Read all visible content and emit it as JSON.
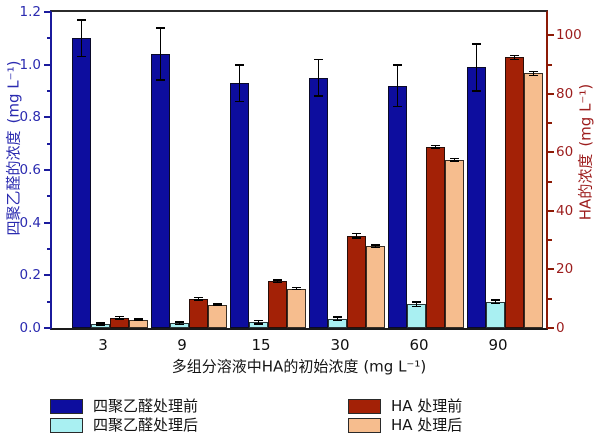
{
  "chart_data": {
    "type": "bar",
    "categories": [
      "3",
      "9",
      "15",
      "30",
      "60",
      "90"
    ],
    "series": [
      {
        "name": "四聚乙醛处理前",
        "axis": "left",
        "color": "#0d0d9e",
        "values": [
          1.1,
          1.04,
          0.93,
          0.95,
          0.92,
          0.99
        ],
        "errors": [
          0.07,
          0.1,
          0.07,
          0.07,
          0.08,
          0.09
        ]
      },
      {
        "name": "四聚乙醛处理后",
        "axis": "left",
        "color": "#a9f0f2",
        "values": [
          0.015,
          0.018,
          0.022,
          0.035,
          0.09,
          0.1
        ],
        "errors": [
          0.005,
          0.005,
          0.008,
          0.008,
          0.01,
          0.008
        ]
      },
      {
        "name": "HA 处理前",
        "axis": "right",
        "color": "#a32106",
        "values": [
          3.5,
          10,
          16,
          31.5,
          62,
          92.5
        ],
        "errors": [
          0.5,
          0.5,
          0.5,
          0.8,
          0.5,
          0.8
        ]
      },
      {
        "name": "HA 处理后",
        "axis": "right",
        "color": "#f6bd8e",
        "values": [
          2.8,
          8,
          13.5,
          28,
          57.5,
          87
        ],
        "errors": [
          0.3,
          0.3,
          0.5,
          0.5,
          0.5,
          0.8
        ]
      }
    ],
    "x_axis": {
      "title": "多组分溶液中HA的初始浓度",
      "unit": "(mg L⁻¹)",
      "tick_labels": [
        "3",
        "9",
        "15",
        "30",
        "60",
        "90"
      ]
    },
    "left_axis": {
      "title": "四聚乙醛的浓度",
      "unit": "(mg L⁻¹)",
      "ticks": [
        0,
        0.2,
        0.4,
        0.6,
        0.8,
        1.0,
        1.2
      ],
      "minor_step": 0.1,
      "ylim": [
        0,
        1.2
      ],
      "decimals": 1,
      "color": "#2b2bb0",
      "line_color": "#1b1b9d"
    },
    "right_axis": {
      "title": "HA的浓度",
      "unit": "(mg L⁻¹)",
      "ticks": [
        0,
        20,
        40,
        60,
        80,
        100
      ],
      "minor_step": 10,
      "ylim": [
        0,
        108
      ],
      "decimals": 0,
      "color": "#9c1c1c",
      "line_color": "#8c1a06"
    },
    "legend": {
      "position": "bottom",
      "items": [
        {
          "label": "四聚乙醛处理前",
          "color": "#0d0d9e"
        },
        {
          "label": "四聚乙醛处理后",
          "color": "#a9f0f2"
        },
        {
          "label": "HA 处理前",
          "color": "#a32106"
        },
        {
          "label": "HA 处理后",
          "color": "#f6bd8e"
        }
      ]
    },
    "grid": false
  }
}
